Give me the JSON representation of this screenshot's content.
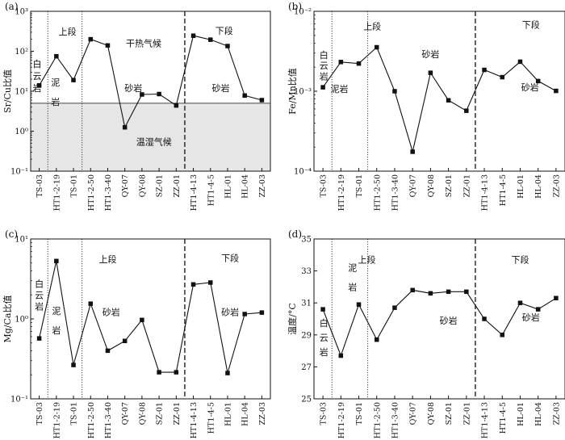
{
  "chart_data": [
    {
      "type": "line",
      "panel_label": "(a)",
      "ylabel": "Sr/Cu比值",
      "yscale": "log",
      "ylim": [
        0.1,
        1000
      ],
      "yticks": [
        "10⁻¹",
        "10⁰",
        "10¹",
        "10²",
        "10³"
      ],
      "ytick_values": [
        0.1,
        1,
        10,
        100,
        1000
      ],
      "categories": [
        "TS-03",
        "HT1-2-19",
        "TS-01",
        "HT1-2-50",
        "HT1-3-40",
        "QY-07",
        "QY-08",
        "SZ-01",
        "ZZ-01",
        "HT1-4-13",
        "HT1-4-5",
        "HL-01",
        "HL-04",
        "ZZ-03"
      ],
      "values": [
        14,
        75,
        19,
        200,
        140,
        1.25,
        8.3,
        8.5,
        4.4,
        245,
        195,
        135,
        7.8,
        6.0
      ],
      "reference_line": {
        "value": 5,
        "shade_below": true,
        "shade_color": "#e6e6e6"
      },
      "dotted_dividers_after": [
        "TS-03",
        "TS-01"
      ],
      "dashed_divider_after": "ZZ-01",
      "annotations": [
        {
          "text": "上段",
          "x": 1.65,
          "y": 310
        },
        {
          "text": "干热气候",
          "x": 6.1,
          "y": 160
        },
        {
          "text": "砂岩",
          "x": 5.5,
          "y": 12
        },
        {
          "text": "温湿气候",
          "x": 6.7,
          "y": 0.55
        },
        {
          "text": "下段",
          "x": 10.8,
          "y": 330
        },
        {
          "text": "砂岩",
          "x": 10.6,
          "y": 12
        }
      ],
      "vertical_annotations": [
        {
          "text": "白云岩",
          "x": -0.12,
          "y": 40,
          "y_bottom": 10
        },
        {
          "text": "泥岩",
          "x": 0.95,
          "y": 14
        }
      ]
    },
    {
      "type": "line",
      "panel_label": "(b)",
      "ylabel": "Fe/Mn比值",
      "yscale": "log",
      "ylim": [
        0.0001,
        0.01
      ],
      "yticks": [
        "10⁻⁴",
        "10⁻³",
        "10⁻²"
      ],
      "ytick_values": [
        0.0001,
        0.001,
        0.01
      ],
      "categories": [
        "TS-03",
        "HT1-2-19",
        "TS-01",
        "HT1-2-50",
        "HT1-3-40",
        "QY-07",
        "QY-08",
        "SZ-01",
        "ZZ-01",
        "HT1-4-13",
        "HT1-4-5",
        "HL-01",
        "HL-04",
        "ZZ-03"
      ],
      "values": [
        0.00112,
        0.00232,
        0.00222,
        0.00355,
        0.001,
        0.000175,
        0.0017,
        0.00077,
        0.00057,
        0.00185,
        0.0015,
        0.00234,
        0.00134,
        0.00101
      ],
      "dotted_dividers_after": [
        "TS-03",
        "TS-01"
      ],
      "dashed_divider_after": "ZZ-01",
      "annotations": [
        {
          "text": "上段",
          "x": 2.75,
          "y": 0.0065
        },
        {
          "text": "砂岩",
          "x": 6.0,
          "y": 0.0029
        },
        {
          "text": "下段",
          "x": 11.6,
          "y": 0.0068
        },
        {
          "text": "砂岩",
          "x": 11.55,
          "y": 0.00112
        }
      ],
      "vertical_annotations": [
        {
          "text": "白云岩",
          "x": 0.05,
          "y": 0.0026,
          "y_bottom": 0.0014
        }
      ],
      "horizontal_extra": [
        {
          "text": "泥岩",
          "x": 0.92,
          "y": 0.00107
        }
      ]
    },
    {
      "type": "line",
      "panel_label": "(c)",
      "ylabel": "Mg/Ca比值",
      "yscale": "log",
      "ylim": [
        0.1,
        10
      ],
      "yticks": [
        "10⁻¹",
        "10⁰",
        "10¹"
      ],
      "ytick_values": [
        0.1,
        1,
        10
      ],
      "categories": [
        "TS-03",
        "HT1-2-19",
        "TS-01",
        "HT1-2-50",
        "HT1-3-40",
        "QY-07",
        "QY-08",
        "SZ-01",
        "ZZ-01",
        "HT1-4-13",
        "HT1-4-5",
        "HL-01",
        "HL-04",
        "ZZ-03"
      ],
      "values": [
        0.57,
        5.3,
        0.265,
        1.55,
        0.4,
        0.53,
        0.97,
        0.215,
        0.215,
        2.7,
        2.85,
        0.21,
        1.15,
        1.2
      ],
      "dotted_dividers_after": [
        "TS-03",
        "TS-01"
      ],
      "dashed_divider_after": "ZZ-01",
      "annotations": [
        {
          "text": "上段",
          "x": 4.0,
          "y": 5.6
        },
        {
          "text": "砂岩",
          "x": 4.2,
          "y": 1.22
        },
        {
          "text": "下段",
          "x": 11.15,
          "y": 5.8
        },
        {
          "text": "砂岩",
          "x": 11.15,
          "y": 1.22
        }
      ],
      "vertical_annotations": [
        {
          "text": "白云岩",
          "x": 0.0,
          "y": 2.5,
          "y_bottom": 1.3
        },
        {
          "text": "泥岩",
          "x": 1.0,
          "y": 1.15
        }
      ]
    },
    {
      "type": "line",
      "panel_label": "(d)",
      "ylabel": "温度/°C",
      "yscale": "linear",
      "ylim": [
        25,
        35
      ],
      "yticks": [
        "25",
        "27",
        "29",
        "31",
        "33",
        "35"
      ],
      "ytick_values": [
        25,
        27,
        29,
        31,
        33,
        35
      ],
      "categories": [
        "TS-03",
        "HT1-2-19",
        "TS-01",
        "HT1-2-50",
        "HT1-3-40",
        "QY-07",
        "QY-08",
        "SZ-01",
        "ZZ-01",
        "HT1-4-13",
        "HT1-4-5",
        "HL-01",
        "HL-04",
        "ZZ-03"
      ],
      "values": [
        30.6,
        27.7,
        30.9,
        28.7,
        30.7,
        31.8,
        31.6,
        31.7,
        31.7,
        30.0,
        29.0,
        31.0,
        30.6,
        31.3
      ],
      "dotted_dividers_after": [
        "TS-03",
        "TS-01"
      ],
      "dashed_divider_after": "ZZ-01",
      "annotations": [
        {
          "text": "上段",
          "x": 2.45,
          "y": 33.7
        },
        {
          "text": "砂岩",
          "x": 7.0,
          "y": 29.9
        },
        {
          "text": "下段",
          "x": 11.0,
          "y": 33.7
        },
        {
          "text": "砂岩",
          "x": 11.6,
          "y": 30.1
        }
      ],
      "vertical_annotations": [
        {
          "text": "泥岩",
          "x": 1.65,
          "y": 33.0
        },
        {
          "text": "白云岩",
          "x": 0.05,
          "y": 29.55
        }
      ]
    }
  ]
}
